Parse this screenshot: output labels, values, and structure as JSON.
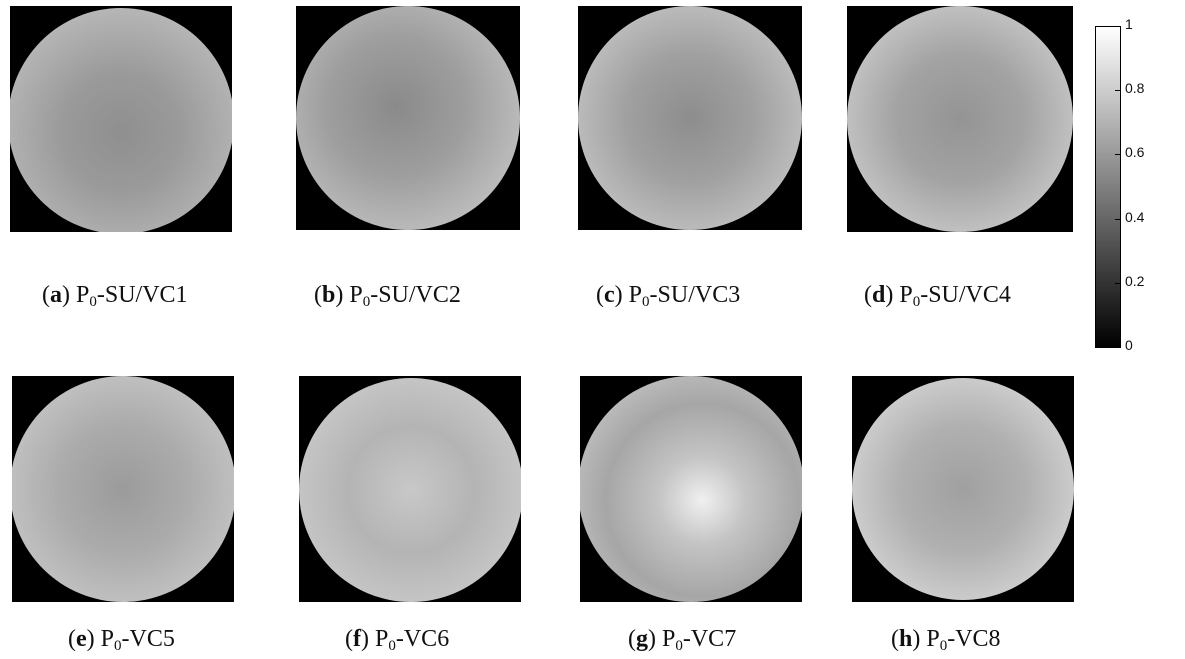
{
  "panels": [
    {
      "letter": "a",
      "prefix": "P",
      "sub": "0",
      "suffix": "-SU/VC1"
    },
    {
      "letter": "b",
      "prefix": "P",
      "sub": "0",
      "suffix": "-SU/VC2"
    },
    {
      "letter": "c",
      "prefix": "P",
      "sub": "0",
      "suffix": "-SU/VC3"
    },
    {
      "letter": "d",
      "prefix": "P",
      "sub": "0",
      "suffix": "-SU/VC4"
    },
    {
      "letter": "e",
      "prefix": "P",
      "sub": "0",
      "suffix": "-VC5"
    },
    {
      "letter": "f",
      "prefix": "P",
      "sub": "0",
      "suffix": "-VC6"
    },
    {
      "letter": "g",
      "prefix": "P",
      "sub": "0",
      "suffix": "-VC7"
    },
    {
      "letter": "h",
      "prefix": "P",
      "sub": "0",
      "suffix": "-VC8"
    }
  ],
  "colorbar": {
    "ticks": [
      "1",
      "0.8",
      "0.6",
      "0.4",
      "0.2",
      "0"
    ],
    "colors": {
      "low": "#000000",
      "high": "#ffffff"
    }
  }
}
